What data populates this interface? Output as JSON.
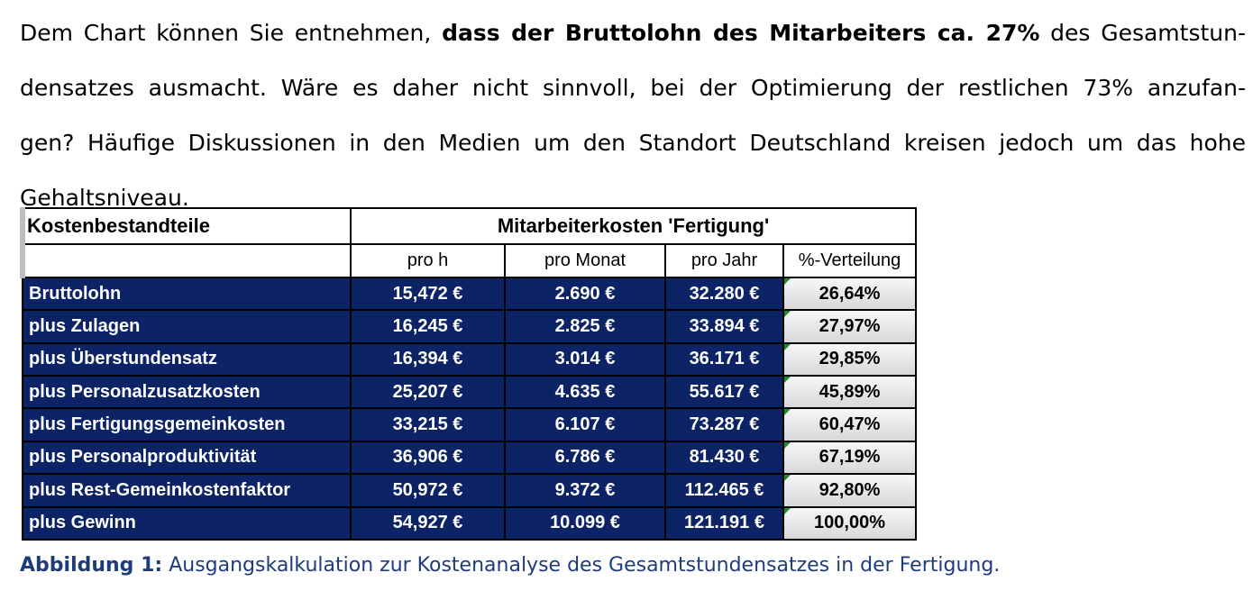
{
  "paragraph": {
    "line1_pre": "Dem Chart können Sie entnehmen, ",
    "line1_bold": "dass der Bruttolohn des Mitarbeiters ca. 27%",
    "line1_post": " des Gesamtstun-",
    "line2": "densatzes ausmacht. Wäre es daher nicht sinnvoll, bei der Optimierung der restlichen 73% anzufan-",
    "line3": "gen? Häufige Diskussionen in den Medien um den Standort Deutschland kreisen jedoch um das hohe",
    "line4": "Gehaltsniveau."
  },
  "table": {
    "col_header_left": "Kostenbestandteile",
    "col_header_group": "Mitarbeiterkosten 'Fertigung'",
    "sub_headers": [
      "pro h",
      "pro Monat",
      "pro Jahr",
      "%-Verteilung"
    ],
    "rows": [
      {
        "label": "Bruttolohn",
        "pro_h": "15,472 €",
        "pro_monat": "2.690 €",
        "pro_jahr": "32.280 €",
        "pct": "26,64%"
      },
      {
        "label": "plus Zulagen",
        "pro_h": "16,245 €",
        "pro_monat": "2.825 €",
        "pro_jahr": "33.894 €",
        "pct": "27,97%"
      },
      {
        "label": "plus Überstundensatz",
        "pro_h": "16,394 €",
        "pro_monat": "3.014 €",
        "pro_jahr": "36.171 €",
        "pct": "29,85%"
      },
      {
        "label": "plus Personalzusatzkosten",
        "pro_h": "25,207 €",
        "pro_monat": "4.635 €",
        "pro_jahr": "55.617 €",
        "pct": "45,89%"
      },
      {
        "label": "plus Fertigungsgemeinkosten",
        "pro_h": "33,215 €",
        "pro_monat": "6.107 €",
        "pro_jahr": "73.287 €",
        "pct": "60,47%"
      },
      {
        "label": "plus Personalproduktivität",
        "pro_h": "36,906 €",
        "pro_monat": "6.786 €",
        "pro_jahr": "81.430 €",
        "pct": "67,19%"
      },
      {
        "label": "plus Rest-Gemeinkostenfaktor",
        "pro_h": "50,972 €",
        "pro_monat": "9.372 €",
        "pro_jahr": "112.465 €",
        "pct": "92,80%"
      },
      {
        "label": "plus Gewinn",
        "pro_h": "54,927 €",
        "pro_monat": "10.099 €",
        "pro_jahr": "121.191 €",
        "pct": "100,00%"
      }
    ]
  },
  "caption": {
    "label": "Abbildung 1:",
    "text": " Ausgangskalkulation zur Kostenanalyse des Gesamtstundensatzes in der Fertigung."
  },
  "colors": {
    "row_fill": "#0c2366",
    "caption_text": "#1f3c7a",
    "cell_marker": "#1e8a2e"
  }
}
